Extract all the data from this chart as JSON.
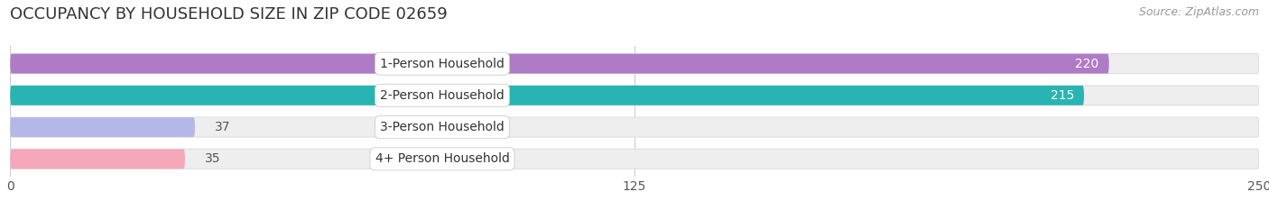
{
  "title": "OCCUPANCY BY HOUSEHOLD SIZE IN ZIP CODE 02659",
  "source": "Source: ZipAtlas.com",
  "categories": [
    "1-Person Household",
    "2-Person Household",
    "3-Person Household",
    "4+ Person Household"
  ],
  "values": [
    220,
    215,
    37,
    35
  ],
  "bar_colors": [
    "#b07bc6",
    "#29b4b4",
    "#b3b8e8",
    "#f4a8ba"
  ],
  "track_color": "#eeeeee",
  "track_edge_color": "#dddddd",
  "xlim": [
    0,
    250
  ],
  "xticks": [
    0,
    125,
    250
  ],
  "background_color": "#ffffff",
  "bar_height": 0.62,
  "label_value_color_inside": "#ffffff",
  "label_value_color_outside": "#555555",
  "title_fontsize": 13,
  "source_fontsize": 9,
  "tick_fontsize": 10,
  "value_fontsize": 10,
  "category_fontsize": 10,
  "value_threshold": 60,
  "grid_color": "#cccccc",
  "title_color": "#333333",
  "source_color": "#999999"
}
